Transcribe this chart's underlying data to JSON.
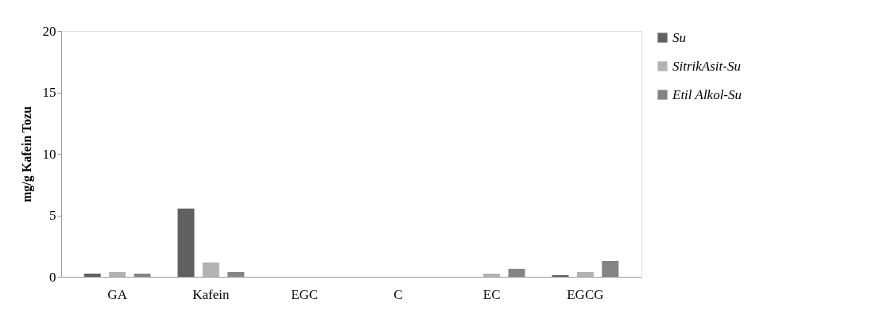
{
  "chart_data": {
    "type": "bar",
    "ylabel": "mg/g Kafein  Tozu",
    "categories": [
      "GA",
      "Kafein",
      "EGC",
      "C",
      "EC",
      "EGCG"
    ],
    "series": [
      {
        "name": "Su",
        "color": "#606060",
        "values": [
          0.26,
          5.55,
          0,
          0,
          0,
          0.13
        ]
      },
      {
        "name": "SitrikAsit-Su",
        "color": "#b3b3b3",
        "values": [
          0.39,
          1.16,
          0,
          0,
          0.26,
          0.39
        ]
      },
      {
        "name": "Etil Alkol-Su",
        "color": "#848484",
        "values": [
          0.26,
          0.39,
          0,
          0,
          0.65,
          1.29
        ]
      }
    ],
    "ylim": [
      0,
      20
    ],
    "yticks": [
      0,
      5,
      10,
      15,
      20
    ],
    "grid": false,
    "legend": "right"
  }
}
